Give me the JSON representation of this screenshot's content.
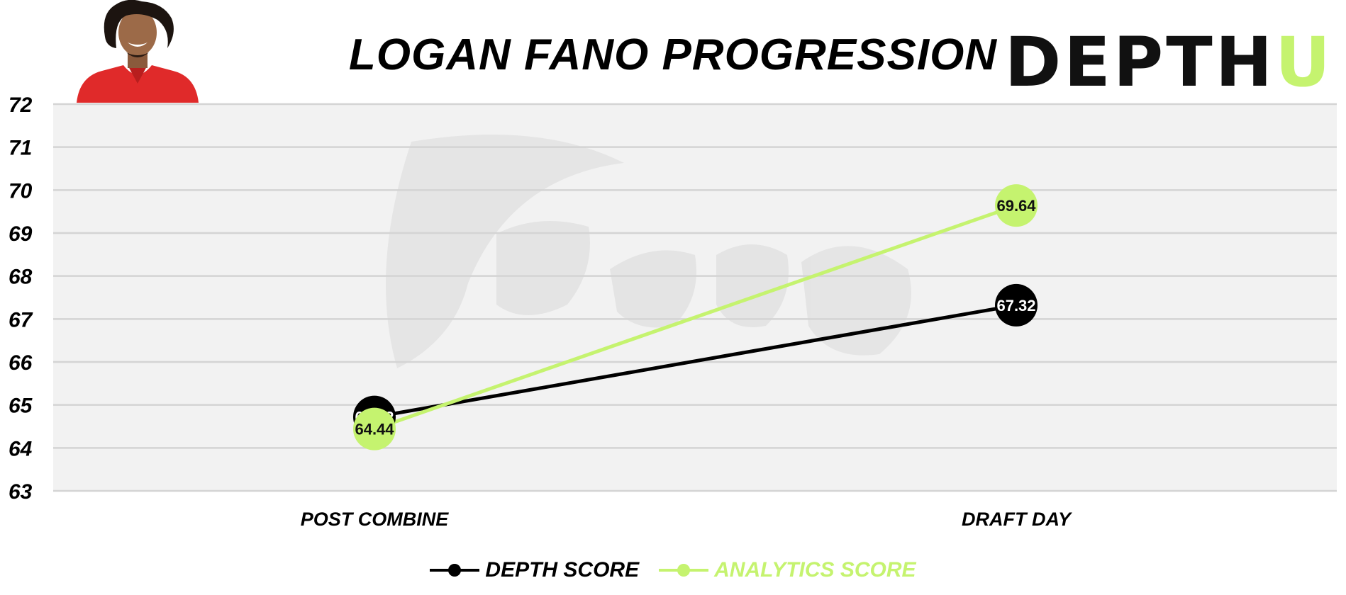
{
  "header": {
    "title": "LOGAN FANO PROGRESSION",
    "brand_main": "DEPTH",
    "brand_accent": "U"
  },
  "colors": {
    "depth": "#000000",
    "analytics": "#c5f36f",
    "plot_bg": "#f2f2f2",
    "grid": "#d4d4d4"
  },
  "chart_data": {
    "type": "line",
    "categories": [
      "POST COMBINE",
      "DRAFT DAY"
    ],
    "series": [
      {
        "name": "DEPTH SCORE",
        "values": [
          64.72,
          67.32
        ],
        "color": "#000000",
        "label_color": "#ffffff"
      },
      {
        "name": "ANALYTICS SCORE",
        "values": [
          64.44,
          69.64
        ],
        "color": "#c5f36f",
        "label_color": "#111111"
      }
    ],
    "yticks": [
      "63",
      "64",
      "65",
      "66",
      "67",
      "68",
      "69",
      "70",
      "71",
      "72"
    ],
    "ylim": [
      63,
      72
    ],
    "grid": true,
    "legend": "bottom-center"
  }
}
